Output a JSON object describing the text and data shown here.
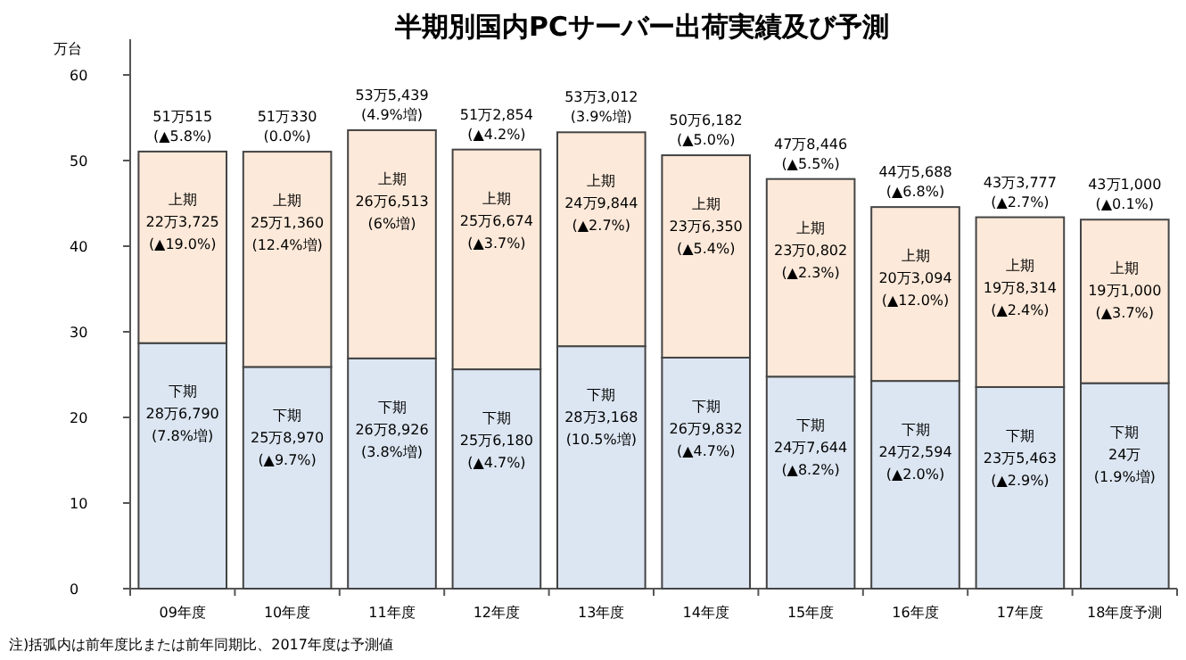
{
  "chart_data": {
    "type": "bar",
    "stacked": true,
    "title": "半期別国内PCサーバー出荷実績及び予測",
    "ylabel": "万台",
    "categories": [
      "09年度",
      "10年度",
      "11年度",
      "12年度",
      "13年度",
      "14年度",
      "15年度",
      "16年度",
      "17年度",
      "18年度予測"
    ],
    "series": [
      {
        "color": "#dce6f2",
        "values": [
          28.679,
          25.897,
          26.8926,
          25.618,
          28.3168,
          26.9832,
          24.7644,
          24.2594,
          23.5463,
          24
        ]
      },
      {
        "color": "#fde9d9",
        "values": [
          22.3725,
          25.136,
          26.6513,
          25.6674,
          24.9844,
          23.635,
          23.0802,
          20.3094,
          19.8314,
          19.1
        ]
      }
    ],
    "totals": [
      "51万515\n(▲5.8%)",
      "51万330\n(0.0%)",
      "53万5,439\n(4.9%増)",
      "51万2,854\n(▲4.2%)",
      "53万3,012\n(3.9%増)",
      "50万6,182\n(▲5.0%)",
      "47万8,446\n(▲5.5%)",
      "44万5,688\n(▲6.8%)",
      "43万3,777\n(▲2.7%)",
      "43万1,000\n(▲0.1%)"
    ],
    "ylim": [
      0,
      60
    ],
    "yticks": [
      0,
      10,
      20,
      30,
      40,
      50,
      60
    ],
    "grid": false,
    "annotations": [
      "注)括弧内は前年度比または前年同期比、2017年度は予測値",
      {
        "text": "下期\n28万6,790\n(7.8%増)",
        "x": "09年度",
        "y": 28.7
      },
      {
        "text": "下期\n25万8,970\n(▲9.7%)",
        "x": "10年度",
        "y": 25.9
      },
      {
        "text": "下期\n26万8,926\n(3.8%増)",
        "x": "11年度",
        "y": 26.9
      },
      {
        "text": "下期\n25万6,180\n(▲4.7%)",
        "x": "12年度",
        "y": 25.6
      },
      {
        "text": "下期\n28万3,168\n(10.5%増)",
        "x": "13年度",
        "y": 28.3
      },
      {
        "text": "下期\n26万9,832\n(▲4.7%)",
        "x": "14年度",
        "y": 27.0
      },
      {
        "text": "下期\n24万7,644\n(▲8.2%)",
        "x": "15年度",
        "y": 24.8
      },
      {
        "text": "下期\n24万2,594\n(▲2.0%)",
        "x": "16年度",
        "y": 24.3
      },
      {
        "text": "下期\n23万5,463\n(▲2.9%)",
        "x": "17年度",
        "y": 23.5
      },
      {
        "text": "下期\n24万\n(1.9%増)",
        "x": "18年度予測",
        "y": 24.0
      },
      {
        "text": "上期\n22万3,725\n(▲19.0%)",
        "x": "09年度",
        "y": 51.1
      },
      {
        "text": "上期\n25万1,360\n(12.4%増)",
        "x": "10年度",
        "y": 51.0
      },
      {
        "text": "上期\n26万6,513\n(6%増)",
        "x": "11年度",
        "y": 53.5
      },
      {
        "text": "上期\n25万6,674\n(▲3.7%)",
        "x": "12年度",
        "y": 51.3
      },
      {
        "text": "上期\n24万9,844\n(▲2.7%)",
        "x": "13年度",
        "y": 53.3
      },
      {
        "text": "上期\n23万6,350\n(▲5.4%)",
        "x": "14年度",
        "y": 50.6
      },
      {
        "text": "上期\n23万0,802\n(▲2.3%)",
        "x": "15年度",
        "y": 47.8
      },
      {
        "text": "上期\n20万3,094\n(▲12.0%)",
        "x": "16年度",
        "y": 44.6
      },
      {
        "text": "上期\n19万8,314\n(▲2.4%)",
        "x": "17年度",
        "y": 43.4
      },
      {
        "text": "上期\n19万1,000\n(▲3.7%)",
        "x": "18年度予測",
        "y": 43.1
      }
    ]
  }
}
